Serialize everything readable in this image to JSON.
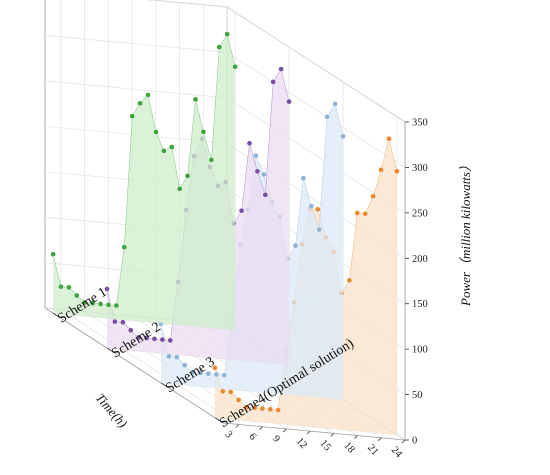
{
  "chart_data": {
    "type": "area",
    "subtype": "3d-waterfall",
    "title": "",
    "xlabel": "Time(h)",
    "ylabel": "Power（million kilowatts）",
    "zlabel": "",
    "x": [
      1,
      2,
      3,
      4,
      5,
      6,
      7,
      8,
      9,
      10,
      11,
      12,
      13,
      14,
      15,
      16,
      17,
      18,
      19,
      20,
      21,
      22,
      23,
      24
    ],
    "x_ticks": [
      "3",
      "6",
      "9",
      "12",
      "15",
      "18",
      "21",
      "24"
    ],
    "ylim": [
      0,
      350
    ],
    "y_ticks": [
      "0",
      "50",
      "100",
      "150",
      "200",
      "250",
      "300",
      "350"
    ],
    "categories": [
      "Scheme 1",
      "Scheme 2",
      "Scheme 3",
      "Scheme4(Optimal solution)"
    ],
    "series": [
      {
        "name": "Scheme 1",
        "color": "#3fa33f",
        "fill": "#cfeecb",
        "values": [
          65,
          30,
          30,
          22,
          15,
          15,
          15,
          15,
          15,
          80,
          225,
          240,
          250,
          210,
          190,
          195,
          150,
          165,
          250,
          215,
          185,
          310,
          325,
          290
        ]
      },
      {
        "name": "Scheme 2",
        "color": "#7b4fa8",
        "fill": "#e9dcf0",
        "values": [
          65,
          30,
          30,
          22,
          15,
          15,
          15,
          15,
          15,
          80,
          160,
          220,
          240,
          210,
          190,
          195,
          150,
          165,
          240,
          210,
          185,
          310,
          325,
          290
        ]
      },
      {
        "name": "Scheme 3",
        "color": "#8fb3d6",
        "fill": "#dbe9f7",
        "values": [
          65,
          30,
          30,
          22,
          15,
          15,
          15,
          15,
          15,
          80,
          160,
          200,
          260,
          240,
          210,
          195,
          150,
          165,
          240,
          210,
          185,
          310,
          325,
          290
        ]
      },
      {
        "name": "Scheme4(Optimal solution)",
        "color": "#e8892f",
        "fill": "#fbe1c7",
        "values": [
          55,
          30,
          30,
          22,
          15,
          15,
          15,
          15,
          15,
          80,
          135,
          200,
          240,
          240,
          210,
          195,
          150,
          165,
          240,
          240,
          260,
          290,
          325,
          290
        ]
      }
    ],
    "grid": true,
    "legend": "none"
  }
}
